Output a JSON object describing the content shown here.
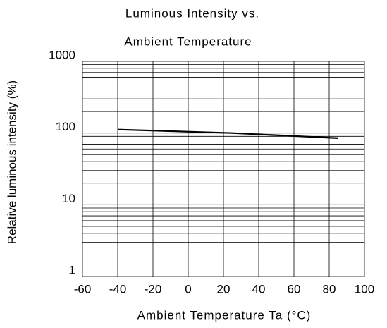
{
  "chart_data": {
    "type": "line",
    "title": [
      "Luminous Intensity vs.",
      "Ambient Temperature"
    ],
    "x_label": "Ambient Temperature Ta (°C)",
    "y_label": "Relative luminous intensity (%)",
    "x": [
      -40,
      25,
      85
    ],
    "values": [
      112,
      100,
      85
    ],
    "color": "#000000",
    "xlim": [
      -60,
      100
    ],
    "xticks": [
      -60,
      -40,
      -20,
      0,
      20,
      40,
      60,
      80,
      100
    ],
    "ylim": [
      1,
      1000
    ],
    "yticks": [
      1,
      10,
      100,
      1000
    ],
    "y_log": true,
    "grid": true,
    "minor_grid": true
  }
}
